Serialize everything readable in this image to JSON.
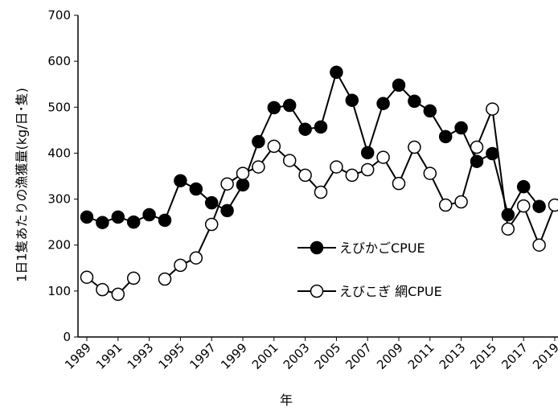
{
  "chart_data": {
    "type": "line",
    "ylabel": "1日1隻あたりの漁獲量(kg/日･隻)",
    "xlabel": "年",
    "x": [
      1989,
      1990,
      1991,
      1992,
      1993,
      1994,
      1995,
      1996,
      1997,
      1998,
      1999,
      2000,
      2001,
      2002,
      2003,
      2004,
      2005,
      2006,
      2007,
      2008,
      2009,
      2010,
      2011,
      2012,
      2013,
      2014,
      2015,
      2016,
      2017,
      2018,
      2019
    ],
    "series": [
      {
        "name": "えびかごCPUE",
        "color": "#000000",
        "marker": "filled",
        "values": [
          261,
          249,
          261,
          250,
          266,
          254,
          340,
          322,
          292,
          275,
          331,
          425,
          499,
          504,
          452,
          457,
          576,
          515,
          401,
          508,
          548,
          513,
          492,
          436,
          455,
          382,
          399,
          266,
          327,
          284,
          null
        ]
      },
      {
        "name": "えびこぎ 網CPUE",
        "color": "#000000",
        "marker": "open",
        "values": [
          130,
          103,
          93,
          128,
          null,
          126,
          156,
          172,
          245,
          333,
          356,
          370,
          415,
          384,
          352,
          315,
          370,
          352,
          364,
          391,
          334,
          413,
          356,
          287,
          294,
          413,
          496,
          235,
          285,
          200,
          287
        ]
      }
    ],
    "xlim": [
      1989,
      2019
    ],
    "xticks": [
      1989,
      1991,
      1993,
      1995,
      1997,
      1999,
      2001,
      2003,
      2005,
      2007,
      2009,
      2011,
      2013,
      2015,
      2017,
      2019
    ],
    "ylim": [
      0,
      700
    ],
    "yticks": [
      0,
      100,
      200,
      300,
      400,
      500,
      600,
      700
    ],
    "legend": "center-right"
  }
}
